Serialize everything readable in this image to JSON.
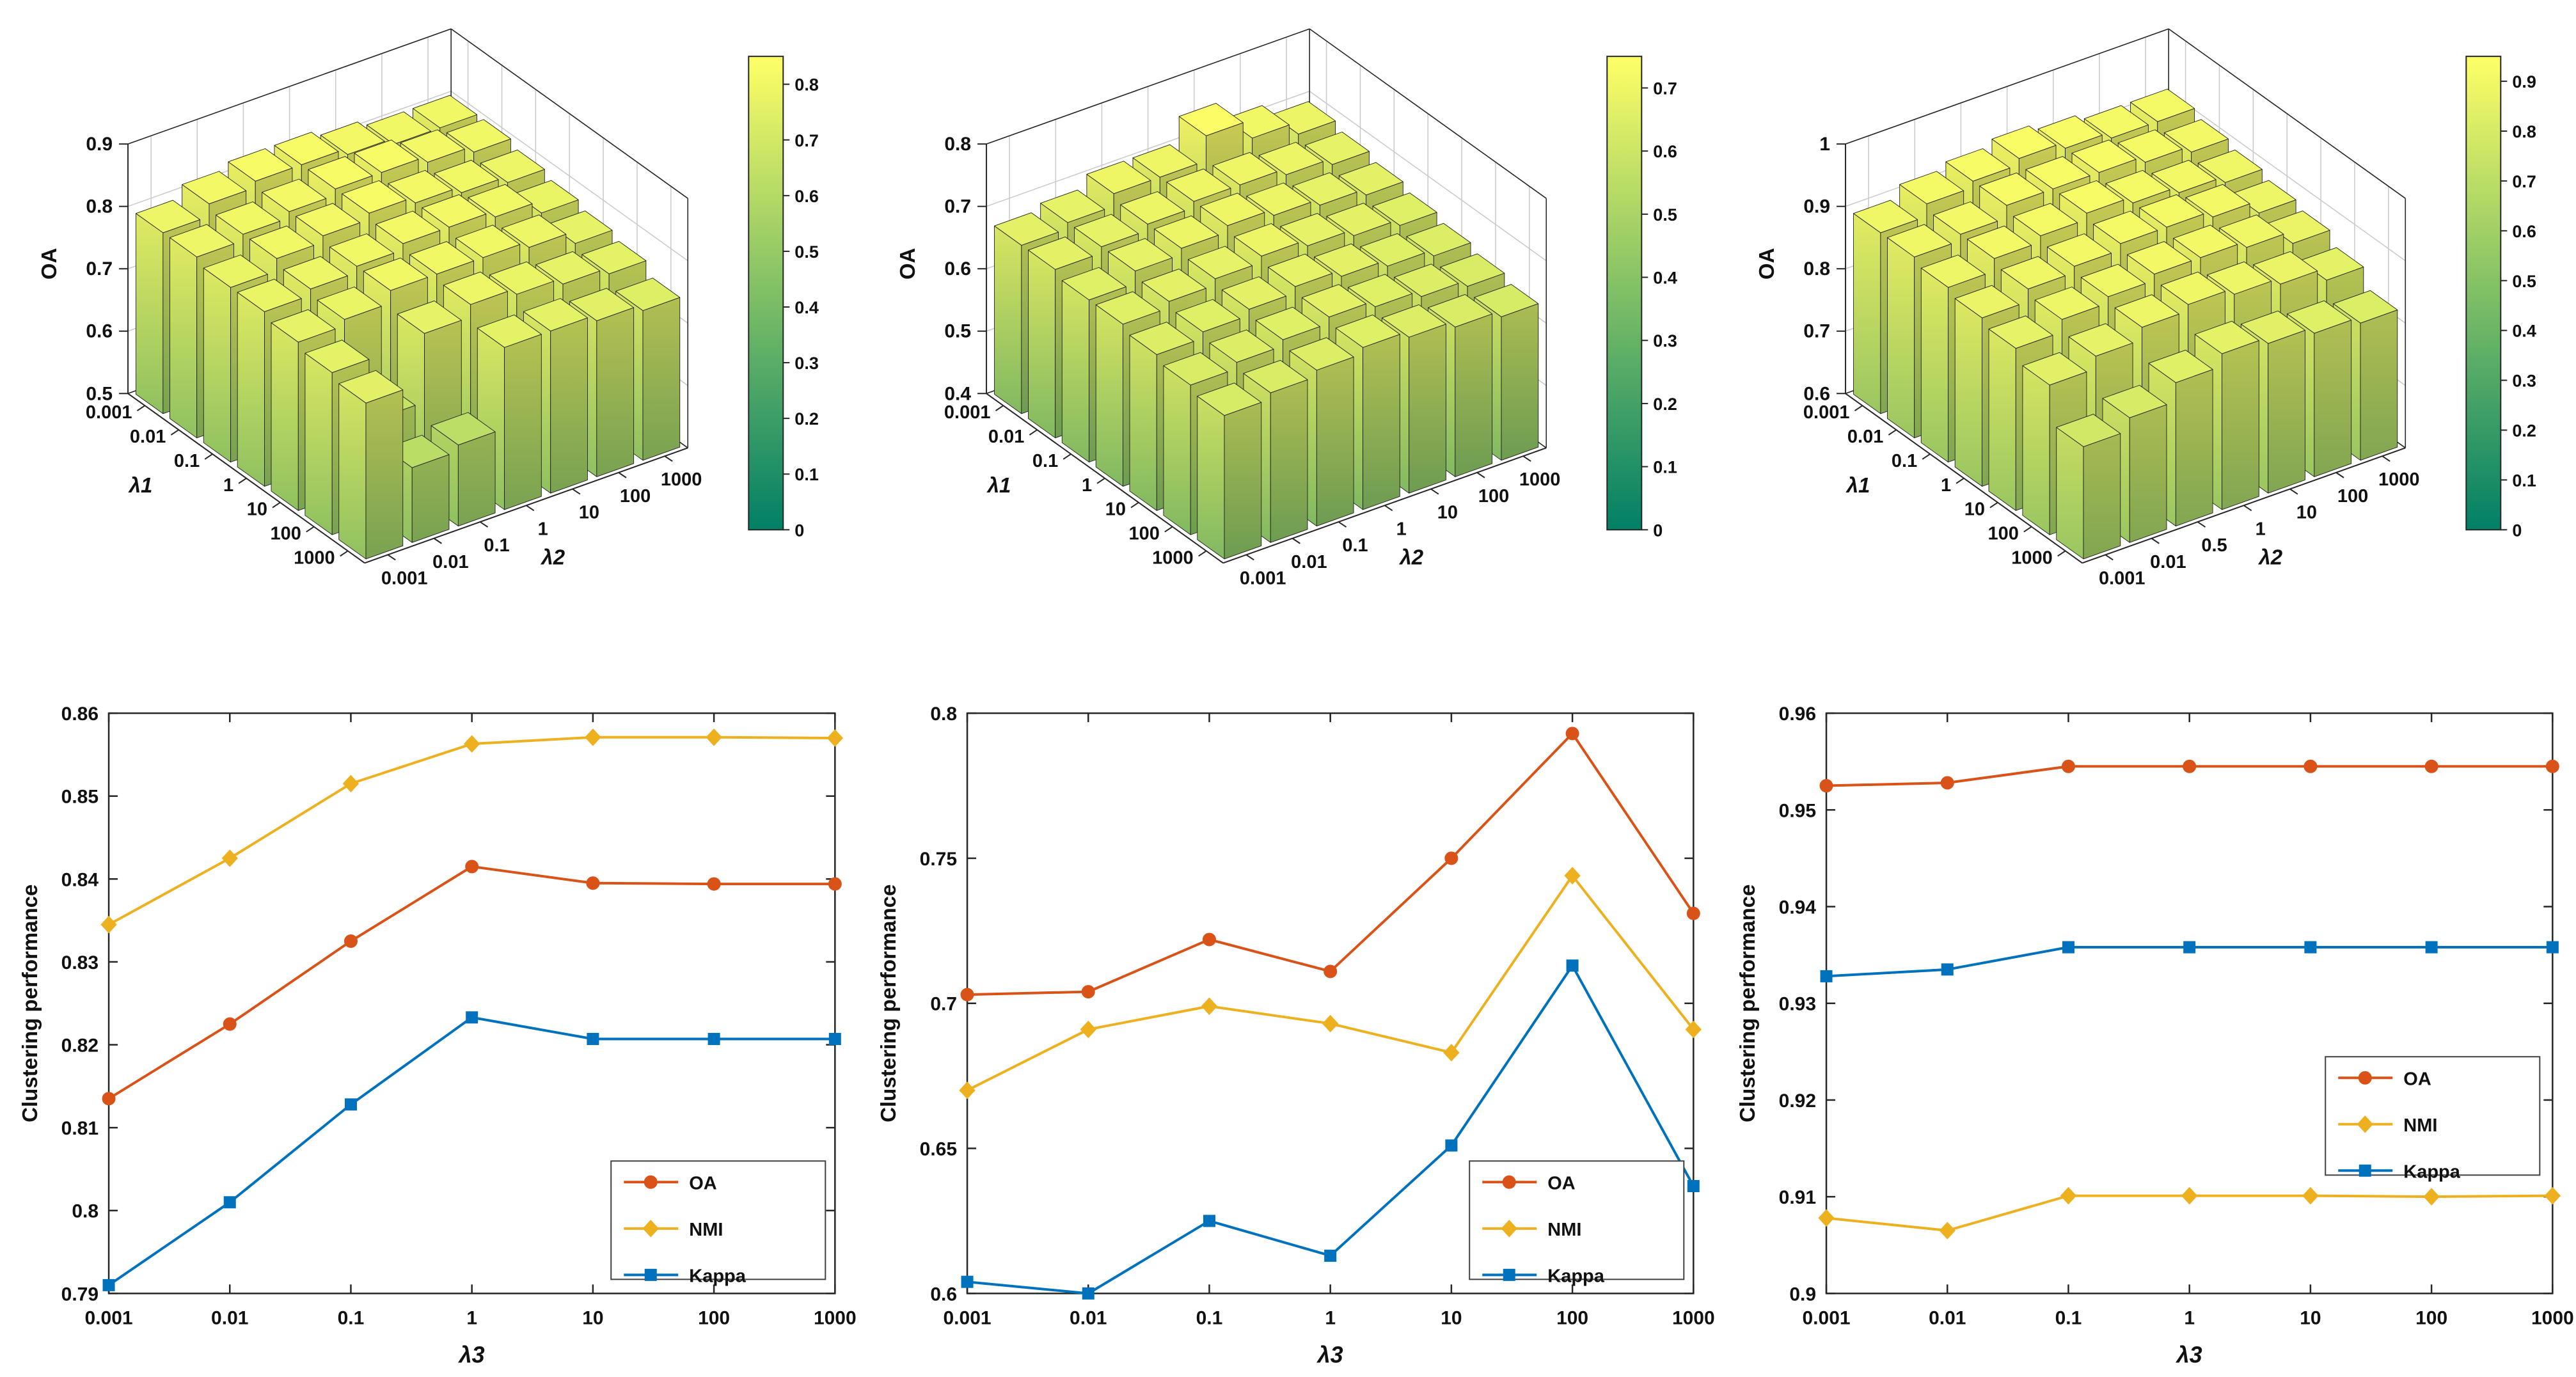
{
  "palette": {
    "oa": "#D95319",
    "nmi": "#EDB120",
    "kappa": "#0072BD",
    "axis": "#262626",
    "grid3d": "#c9c9c9",
    "colormap_low": "rgb(0,128,102)",
    "colormap_high": "rgb(255,255,102)"
  },
  "chart_data": [
    {
      "id": "bar3d-chart-1",
      "type": "bar3d",
      "zlabel": "OA",
      "xlabel": "λ1",
      "ylabel": "λ2",
      "x_ticks": [
        "0.001",
        "0.01",
        "0.1",
        "1",
        "10",
        "100",
        "1000"
      ],
      "y_ticks": [
        "0.001",
        "0.01",
        "0.1",
        "1",
        "10",
        "100",
        "1000"
      ],
      "zlim": [
        0.5,
        0.9
      ],
      "z_ticks": [
        "0.5",
        "0.6",
        "0.7",
        "0.8",
        "0.9"
      ],
      "colorbar": {
        "range": [
          0,
          0.85
        ],
        "ticks": [
          "0",
          "0.1",
          "0.2",
          "0.3",
          "0.4",
          "0.5",
          "0.6",
          "0.7",
          "0.8"
        ]
      },
      "values": [
        [
          0.79,
          0.81,
          0.82,
          0.82,
          0.81,
          0.8,
          0.8
        ],
        [
          0.79,
          0.8,
          0.81,
          0.82,
          0.82,
          0.81,
          0.8
        ],
        [
          0.78,
          0.8,
          0.81,
          0.82,
          0.81,
          0.8,
          0.79
        ],
        [
          0.78,
          0.79,
          0.8,
          0.81,
          0.81,
          0.8,
          0.78
        ],
        [
          0.77,
          0.78,
          0.8,
          0.8,
          0.8,
          0.79,
          0.77
        ],
        [
          0.76,
          0.66,
          0.77,
          0.79,
          0.78,
          0.77,
          0.76
        ],
        [
          0.75,
          0.62,
          0.63,
          0.76,
          0.76,
          0.75,
          0.74
        ]
      ]
    },
    {
      "id": "bar3d-chart-2",
      "type": "bar3d",
      "zlabel": "OA",
      "xlabel": "λ1",
      "ylabel": "λ2",
      "x_ticks": [
        "0.001",
        "0.01",
        "0.1",
        "1",
        "10",
        "100",
        "1000"
      ],
      "y_ticks": [
        "0.001",
        "0.01",
        "0.1",
        "1",
        "10",
        "100",
        "1000"
      ],
      "zlim": [
        0.4,
        0.8
      ],
      "z_ticks": [
        "0.4",
        "0.5",
        "0.6",
        "0.7",
        "0.8"
      ],
      "colorbar": {
        "range": [
          0,
          0.75
        ],
        "ticks": [
          "0",
          "0.1",
          "0.2",
          "0.3",
          "0.4",
          "0.5",
          "0.6",
          "0.7"
        ]
      },
      "values": [
        [
          0.67,
          0.68,
          0.7,
          0.7,
          0.74,
          0.71,
          0.69
        ],
        [
          0.67,
          0.68,
          0.69,
          0.7,
          0.7,
          0.69,
          0.68
        ],
        [
          0.66,
          0.68,
          0.69,
          0.7,
          0.69,
          0.68,
          0.67
        ],
        [
          0.66,
          0.67,
          0.68,
          0.69,
          0.68,
          0.67,
          0.66
        ],
        [
          0.65,
          0.66,
          0.67,
          0.68,
          0.67,
          0.66,
          0.65
        ],
        [
          0.64,
          0.65,
          0.66,
          0.67,
          0.66,
          0.65,
          0.64
        ],
        [
          0.63,
          0.64,
          0.65,
          0.66,
          0.65,
          0.64,
          0.63
        ]
      ]
    },
    {
      "id": "bar3d-chart-3",
      "type": "bar3d",
      "zlabel": "OA",
      "xlabel": "λ1",
      "ylabel": "λ2",
      "x_ticks": [
        "0.001",
        "0.01",
        "0.1",
        "1",
        "10",
        "100",
        "1000"
      ],
      "y_ticks": [
        "0.001",
        "0.01",
        "0.5",
        "1",
        "10",
        "100",
        "1000"
      ],
      "zlim": [
        0.6,
        1.0
      ],
      "z_ticks": [
        "0.6",
        "0.7",
        "0.8",
        "0.9",
        "1"
      ],
      "colorbar": {
        "range": [
          0,
          0.95
        ],
        "ticks": [
          "0",
          "0.1",
          "0.2",
          "0.3",
          "0.4",
          "0.5",
          "0.6",
          "0.7",
          "0.8",
          "0.9"
        ]
      },
      "values": [
        [
          0.89,
          0.91,
          0.92,
          0.93,
          0.92,
          0.91,
          0.91
        ],
        [
          0.89,
          0.9,
          0.92,
          0.92,
          0.92,
          0.91,
          0.9
        ],
        [
          0.88,
          0.9,
          0.91,
          0.92,
          0.91,
          0.9,
          0.89
        ],
        [
          0.87,
          0.89,
          0.9,
          0.91,
          0.91,
          0.9,
          0.88
        ],
        [
          0.86,
          0.88,
          0.89,
          0.9,
          0.9,
          0.89,
          0.87
        ],
        [
          0.84,
          0.86,
          0.88,
          0.89,
          0.88,
          0.87,
          0.85
        ],
        [
          0.78,
          0.8,
          0.83,
          0.85,
          0.84,
          0.83,
          0.82
        ]
      ]
    },
    {
      "id": "line-chart-1",
      "type": "line",
      "xlabel": "λ3",
      "ylabel": "Clustering performance",
      "categories": [
        "0.001",
        "0.01",
        "0.1",
        "1",
        "10",
        "100",
        "1000"
      ],
      "ylim": [
        0.79,
        0.86
      ],
      "y_ticks": [
        "0.79",
        "0.8",
        "0.81",
        "0.82",
        "0.83",
        "0.84",
        "0.85",
        "0.86"
      ],
      "legend_position": "southeast",
      "series": [
        {
          "name": "OA",
          "marker": "circle",
          "color_key": "oa",
          "values": [
            0.8135,
            0.8225,
            0.8325,
            0.8415,
            0.8395,
            0.8394,
            0.8394
          ]
        },
        {
          "name": "NMI",
          "marker": "diamond",
          "color_key": "nmi",
          "values": [
            0.8345,
            0.8425,
            0.8515,
            0.8563,
            0.8571,
            0.8571,
            0.857
          ]
        },
        {
          "name": "Kappa",
          "marker": "square",
          "color_key": "kappa",
          "values": [
            0.791,
            0.801,
            0.8128,
            0.8233,
            0.8207,
            0.8207,
            0.8207
          ]
        }
      ]
    },
    {
      "id": "line-chart-2",
      "type": "line",
      "xlabel": "λ3",
      "ylabel": "Clustering performance",
      "categories": [
        "0.001",
        "0.01",
        "0.1",
        "1",
        "10",
        "100",
        "1000"
      ],
      "ylim": [
        0.6,
        0.8
      ],
      "y_ticks": [
        "0.6",
        "0.65",
        "0.7",
        "0.75",
        "0.8"
      ],
      "legend_position": "southeast",
      "series": [
        {
          "name": "OA",
          "marker": "circle",
          "color_key": "oa",
          "values": [
            0.703,
            0.704,
            0.722,
            0.711,
            0.75,
            0.793,
            0.731
          ]
        },
        {
          "name": "NMI",
          "marker": "diamond",
          "color_key": "nmi",
          "values": [
            0.67,
            0.691,
            0.699,
            0.693,
            0.683,
            0.744,
            0.691
          ]
        },
        {
          "name": "Kappa",
          "marker": "square",
          "color_key": "kappa",
          "values": [
            0.604,
            0.6,
            0.625,
            0.613,
            0.651,
            0.713,
            0.637
          ]
        }
      ]
    },
    {
      "id": "line-chart-3",
      "type": "line",
      "xlabel": "λ3",
      "ylabel": "Clustering performance",
      "categories": [
        "0.001",
        "0.01",
        "0.1",
        "1",
        "10",
        "100",
        "1000"
      ],
      "ylim": [
        0.9,
        0.96
      ],
      "y_ticks": [
        "0.9",
        "0.91",
        "0.92",
        "0.93",
        "0.94",
        "0.95",
        "0.96"
      ],
      "legend_position": "east",
      "series": [
        {
          "name": "OA",
          "marker": "circle",
          "color_key": "oa",
          "values": [
            0.9525,
            0.9528,
            0.9545,
            0.9545,
            0.9545,
            0.9545,
            0.9545
          ]
        },
        {
          "name": "NMI",
          "marker": "diamond",
          "color_key": "nmi",
          "values": [
            0.9078,
            0.9065,
            0.9101,
            0.9101,
            0.9101,
            0.91,
            0.9101
          ]
        },
        {
          "name": "Kappa",
          "marker": "square",
          "color_key": "kappa",
          "values": [
            0.9328,
            0.9335,
            0.9358,
            0.9358,
            0.9358,
            0.9358,
            0.9358
          ]
        }
      ]
    }
  ]
}
